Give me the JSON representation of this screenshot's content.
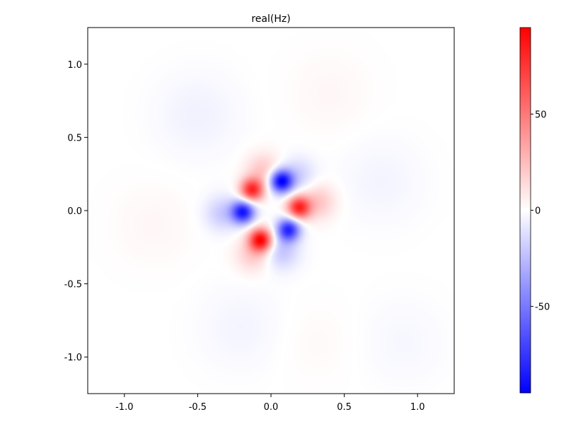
{
  "chart_data": {
    "type": "heatmap",
    "title": "real(Hz)",
    "xlabel": "",
    "ylabel": "",
    "xlim": [
      -1.25,
      1.25
    ],
    "ylim": [
      -1.25,
      1.25
    ],
    "x_ticks": [
      -1.0,
      -0.5,
      0.0,
      0.5,
      1.0
    ],
    "x_tick_labels": [
      "-1.0",
      "-0.5",
      "0.0",
      "0.5",
      "1.0"
    ],
    "y_ticks": [
      1.0,
      0.5,
      0.0,
      -0.5,
      -1.0
    ],
    "y_tick_labels": [
      "1.0",
      "0.5",
      "0.0",
      "-0.5",
      "-1.0"
    ],
    "grid": false,
    "colormap": "blue-white-red",
    "colorbar": {
      "range": [
        -95,
        95
      ],
      "ticks": [
        50,
        0,
        -50
      ],
      "tick_labels": [
        "50",
        "0",
        "-50"
      ],
      "colors": [
        "#0000ff",
        "#ffffff",
        "#ff0000"
      ]
    },
    "blobs": [
      {
        "x": 0.07,
        "y": 0.2,
        "value": -95
      },
      {
        "x": -0.13,
        "y": 0.14,
        "value": 80
      },
      {
        "x": 0.19,
        "y": 0.02,
        "value": 80
      },
      {
        "x": -0.19,
        "y": -0.01,
        "value": -85
      },
      {
        "x": 0.12,
        "y": -0.13,
        "value": -80
      },
      {
        "x": -0.07,
        "y": -0.2,
        "value": 92
      },
      {
        "x": -0.05,
        "y": 0.27,
        "value": 22
      },
      {
        "x": 0.18,
        "y": 0.24,
        "value": -18
      },
      {
        "x": 0.32,
        "y": 0.06,
        "value": 22
      },
      {
        "x": -0.33,
        "y": -0.02,
        "value": -20
      },
      {
        "x": 0.07,
        "y": -0.28,
        "value": -22
      },
      {
        "x": -0.12,
        "y": -0.3,
        "value": 20
      },
      {
        "x": -0.5,
        "y": 0.65,
        "value": -5
      },
      {
        "x": 0.75,
        "y": 0.2,
        "value": -4
      },
      {
        "x": -0.8,
        "y": -0.1,
        "value": 3
      },
      {
        "x": 0.4,
        "y": 0.8,
        "value": 3
      },
      {
        "x": -0.2,
        "y": -0.8,
        "value": -4
      },
      {
        "x": 0.9,
        "y": -0.9,
        "value": -3
      },
      {
        "x": 0.3,
        "y": -0.9,
        "value": 2
      }
    ]
  }
}
